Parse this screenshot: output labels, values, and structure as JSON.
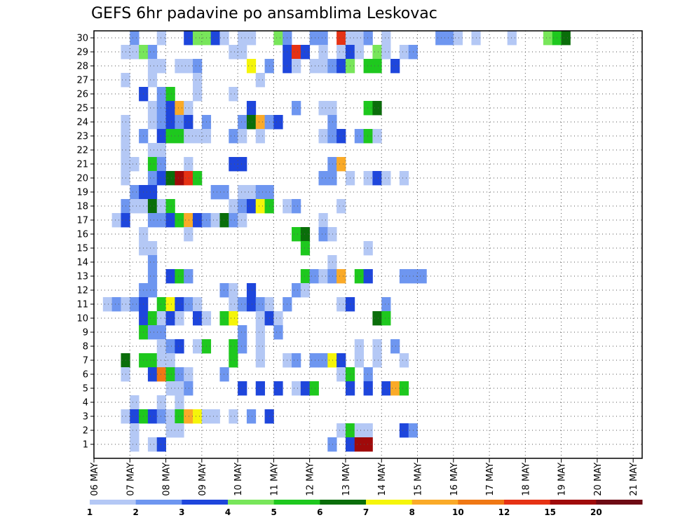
{
  "chart_data": {
    "type": "heatmap",
    "title": "GEFS 6hr padavine po ansamblima Leskovac",
    "xlabel": "",
    "ylabel": "",
    "x_tick_labels": [
      "06 MAY",
      "07 MAY",
      "08 MAY",
      "09 MAY",
      "10 MAY",
      "11 MAY",
      "12 MAY",
      "13 MAY",
      "14 MAY",
      "15 MAY",
      "16 MAY",
      "17 MAY",
      "18 MAY",
      "19 MAY",
      "20 MAY",
      "21 MAY"
    ],
    "y_tick_labels": [
      "1",
      "2",
      "3",
      "4",
      "5",
      "6",
      "7",
      "8",
      "9",
      "10",
      "11",
      "12",
      "13",
      "14",
      "15",
      "16",
      "17",
      "18",
      "19",
      "20",
      "21",
      "22",
      "23",
      "24",
      "25",
      "26",
      "27",
      "28",
      "29",
      "30"
    ],
    "time_steps": 61,
    "members": 30,
    "grid": true,
    "colorbar": {
      "levels": [
        "1",
        "2",
        "3",
        "4",
        "5",
        "6",
        "7",
        "8",
        "10",
        "12",
        "15",
        "20"
      ],
      "colors": [
        "#b4c8f5",
        "#6e96f0",
        "#1e46dc",
        "#78e65a",
        "#1ec81e",
        "#0a6e0a",
        "#f5f50a",
        "#faaa28",
        "#f07814",
        "#e63214",
        "#a00a0a",
        "#6e0a14"
      ]
    },
    "cells": [
      [
        30,
        4,
        2
      ],
      [
        30,
        7,
        1
      ],
      [
        30,
        10,
        3
      ],
      [
        30,
        11,
        4
      ],
      [
        30,
        12,
        4
      ],
      [
        30,
        13,
        3
      ],
      [
        30,
        14,
        1
      ],
      [
        30,
        16,
        1
      ],
      [
        30,
        17,
        1
      ],
      [
        30,
        20,
        4
      ],
      [
        30,
        21,
        2
      ],
      [
        30,
        24,
        2
      ],
      [
        30,
        25,
        2
      ],
      [
        30,
        27,
        10
      ],
      [
        30,
        28,
        1
      ],
      [
        30,
        29,
        1
      ],
      [
        30,
        30,
        2
      ],
      [
        30,
        32,
        1
      ],
      [
        30,
        38,
        2
      ],
      [
        30,
        39,
        2
      ],
      [
        30,
        40,
        1
      ],
      [
        30,
        42,
        1
      ],
      [
        30,
        46,
        1
      ],
      [
        30,
        50,
        4
      ],
      [
        30,
        51,
        5
      ],
      [
        30,
        52,
        6
      ],
      [
        29,
        3,
        1
      ],
      [
        29,
        4,
        1
      ],
      [
        29,
        5,
        4
      ],
      [
        29,
        6,
        2
      ],
      [
        29,
        15,
        1
      ],
      [
        29,
        16,
        1
      ],
      [
        29,
        21,
        3
      ],
      [
        29,
        22,
        10
      ],
      [
        29,
        23,
        3
      ],
      [
        29,
        25,
        1
      ],
      [
        29,
        27,
        1
      ],
      [
        29,
        28,
        3
      ],
      [
        29,
        29,
        1
      ],
      [
        29,
        31,
        4
      ],
      [
        29,
        32,
        1
      ],
      [
        29,
        34,
        1
      ],
      [
        29,
        35,
        2
      ],
      [
        28,
        6,
        1
      ],
      [
        28,
        7,
        1
      ],
      [
        28,
        9,
        1
      ],
      [
        28,
        10,
        1
      ],
      [
        28,
        11,
        2
      ],
      [
        28,
        17,
        7
      ],
      [
        28,
        19,
        2
      ],
      [
        28,
        21,
        3
      ],
      [
        28,
        22,
        1
      ],
      [
        28,
        24,
        1
      ],
      [
        28,
        25,
        1
      ],
      [
        28,
        26,
        2
      ],
      [
        28,
        27,
        3
      ],
      [
        28,
        28,
        4
      ],
      [
        28,
        30,
        5
      ],
      [
        28,
        31,
        5
      ],
      [
        28,
        33,
        3
      ],
      [
        27,
        3,
        1
      ],
      [
        27,
        6,
        1
      ],
      [
        27,
        11,
        1
      ],
      [
        27,
        18,
        1
      ],
      [
        26,
        5,
        3
      ],
      [
        26,
        7,
        2
      ],
      [
        26,
        8,
        5
      ],
      [
        26,
        11,
        1
      ],
      [
        26,
        15,
        1
      ],
      [
        25,
        6,
        1
      ],
      [
        25,
        7,
        2
      ],
      [
        25,
        8,
        3
      ],
      [
        25,
        9,
        8
      ],
      [
        25,
        10,
        1
      ],
      [
        25,
        17,
        3
      ],
      [
        25,
        22,
        2
      ],
      [
        25,
        25,
        1
      ],
      [
        25,
        26,
        1
      ],
      [
        25,
        30,
        5
      ],
      [
        25,
        31,
        6
      ],
      [
        24,
        3,
        1
      ],
      [
        24,
        6,
        1
      ],
      [
        24,
        7,
        2
      ],
      [
        24,
        8,
        3
      ],
      [
        24,
        9,
        2
      ],
      [
        24,
        10,
        3
      ],
      [
        24,
        12,
        2
      ],
      [
        24,
        16,
        2
      ],
      [
        24,
        17,
        6
      ],
      [
        24,
        18,
        8
      ],
      [
        24,
        19,
        2
      ],
      [
        24,
        20,
        3
      ],
      [
        24,
        26,
        2
      ],
      [
        23,
        3,
        1
      ],
      [
        23,
        5,
        2
      ],
      [
        23,
        7,
        3
      ],
      [
        23,
        8,
        5
      ],
      [
        23,
        9,
        5
      ],
      [
        23,
        10,
        1
      ],
      [
        23,
        11,
        1
      ],
      [
        23,
        12,
        1
      ],
      [
        23,
        15,
        2
      ],
      [
        23,
        16,
        1
      ],
      [
        23,
        18,
        1
      ],
      [
        23,
        25,
        1
      ],
      [
        23,
        26,
        2
      ],
      [
        23,
        27,
        3
      ],
      [
        23,
        29,
        2
      ],
      [
        23,
        30,
        5
      ],
      [
        23,
        31,
        1
      ],
      [
        22,
        3,
        1
      ],
      [
        22,
        6,
        1
      ],
      [
        22,
        7,
        1
      ],
      [
        21,
        3,
        1
      ],
      [
        21,
        4,
        1
      ],
      [
        21,
        6,
        5
      ],
      [
        21,
        7,
        2
      ],
      [
        21,
        10,
        1
      ],
      [
        21,
        15,
        3
      ],
      [
        21,
        16,
        3
      ],
      [
        21,
        26,
        2
      ],
      [
        21,
        27,
        8
      ],
      [
        20,
        3,
        1
      ],
      [
        20,
        6,
        2
      ],
      [
        20,
        7,
        3
      ],
      [
        20,
        8,
        6
      ],
      [
        20,
        9,
        11
      ],
      [
        20,
        10,
        10
      ],
      [
        20,
        11,
        5
      ],
      [
        20,
        25,
        2
      ],
      [
        20,
        26,
        2
      ],
      [
        20,
        28,
        1
      ],
      [
        20,
        30,
        1
      ],
      [
        20,
        31,
        3
      ],
      [
        20,
        32,
        1
      ],
      [
        20,
        34,
        1
      ],
      [
        19,
        4,
        2
      ],
      [
        19,
        5,
        3
      ],
      [
        19,
        6,
        3
      ],
      [
        19,
        13,
        2
      ],
      [
        19,
        14,
        2
      ],
      [
        19,
        16,
        1
      ],
      [
        19,
        17,
        1
      ],
      [
        19,
        18,
        2
      ],
      [
        19,
        19,
        2
      ],
      [
        18,
        3,
        2
      ],
      [
        18,
        4,
        1
      ],
      [
        18,
        5,
        1
      ],
      [
        18,
        6,
        6
      ],
      [
        18,
        7,
        1
      ],
      [
        18,
        8,
        5
      ],
      [
        18,
        15,
        1
      ],
      [
        18,
        16,
        2
      ],
      [
        18,
        17,
        3
      ],
      [
        18,
        18,
        7
      ],
      [
        18,
        19,
        5
      ],
      [
        18,
        21,
        1
      ],
      [
        18,
        22,
        2
      ],
      [
        18,
        27,
        1
      ],
      [
        17,
        2,
        1
      ],
      [
        17,
        3,
        3
      ],
      [
        17,
        6,
        2
      ],
      [
        17,
        7,
        2
      ],
      [
        17,
        8,
        3
      ],
      [
        17,
        9,
        5
      ],
      [
        17,
        10,
        8
      ],
      [
        17,
        11,
        3
      ],
      [
        17,
        12,
        2
      ],
      [
        17,
        13,
        1
      ],
      [
        17,
        14,
        6
      ],
      [
        17,
        15,
        2
      ],
      [
        17,
        16,
        1
      ],
      [
        17,
        25,
        1
      ],
      [
        16,
        5,
        1
      ],
      [
        16,
        10,
        1
      ],
      [
        16,
        22,
        5
      ],
      [
        16,
        23,
        6
      ],
      [
        16,
        25,
        2
      ],
      [
        16,
        26,
        1
      ],
      [
        15,
        5,
        1
      ],
      [
        15,
        6,
        1
      ],
      [
        15,
        23,
        5
      ],
      [
        15,
        30,
        1
      ],
      [
        14,
        6,
        2
      ],
      [
        14,
        26,
        1
      ],
      [
        13,
        6,
        2
      ],
      [
        13,
        8,
        3
      ],
      [
        13,
        9,
        5
      ],
      [
        13,
        10,
        2
      ],
      [
        13,
        23,
        5
      ],
      [
        13,
        24,
        2
      ],
      [
        13,
        25,
        1
      ],
      [
        13,
        26,
        2
      ],
      [
        13,
        27,
        8
      ],
      [
        13,
        29,
        5
      ],
      [
        13,
        30,
        3
      ],
      [
        13,
        34,
        2
      ],
      [
        13,
        35,
        2
      ],
      [
        13,
        36,
        2
      ],
      [
        12,
        5,
        2
      ],
      [
        12,
        6,
        2
      ],
      [
        12,
        14,
        2
      ],
      [
        12,
        15,
        1
      ],
      [
        12,
        17,
        3
      ],
      [
        12,
        22,
        2
      ],
      [
        12,
        23,
        1
      ],
      [
        11,
        1,
        1
      ],
      [
        11,
        2,
        2
      ],
      [
        11,
        3,
        1
      ],
      [
        11,
        4,
        2
      ],
      [
        11,
        5,
        3
      ],
      [
        11,
        7,
        5
      ],
      [
        11,
        8,
        7
      ],
      [
        11,
        9,
        3
      ],
      [
        11,
        10,
        2
      ],
      [
        11,
        11,
        1
      ],
      [
        11,
        15,
        1
      ],
      [
        11,
        16,
        2
      ],
      [
        11,
        17,
        3
      ],
      [
        11,
        18,
        2
      ],
      [
        11,
        19,
        1
      ],
      [
        11,
        21,
        2
      ],
      [
        11,
        27,
        1
      ],
      [
        11,
        28,
        3
      ],
      [
        11,
        32,
        2
      ],
      [
        10,
        5,
        3
      ],
      [
        10,
        6,
        5
      ],
      [
        10,
        7,
        1
      ],
      [
        10,
        8,
        3
      ],
      [
        10,
        9,
        1
      ],
      [
        10,
        11,
        3
      ],
      [
        10,
        12,
        1
      ],
      [
        10,
        14,
        5
      ],
      [
        10,
        15,
        7
      ],
      [
        10,
        18,
        1
      ],
      [
        10,
        19,
        3
      ],
      [
        10,
        20,
        1
      ],
      [
        10,
        31,
        6
      ],
      [
        10,
        32,
        5
      ],
      [
        9,
        5,
        5
      ],
      [
        9,
        6,
        2
      ],
      [
        9,
        7,
        2
      ],
      [
        9,
        16,
        2
      ],
      [
        9,
        18,
        1
      ],
      [
        9,
        20,
        2
      ],
      [
        8,
        7,
        1
      ],
      [
        8,
        8,
        2
      ],
      [
        8,
        9,
        3
      ],
      [
        8,
        11,
        1
      ],
      [
        8,
        12,
        5
      ],
      [
        8,
        15,
        5
      ],
      [
        8,
        16,
        2
      ],
      [
        8,
        18,
        1
      ],
      [
        8,
        29,
        1
      ],
      [
        8,
        31,
        1
      ],
      [
        8,
        33,
        2
      ],
      [
        7,
        3,
        6
      ],
      [
        7,
        5,
        5
      ],
      [
        7,
        6,
        5
      ],
      [
        7,
        7,
        1
      ],
      [
        7,
        8,
        1
      ],
      [
        7,
        15,
        5
      ],
      [
        7,
        18,
        1
      ],
      [
        7,
        21,
        1
      ],
      [
        7,
        22,
        2
      ],
      [
        7,
        24,
        2
      ],
      [
        7,
        25,
        2
      ],
      [
        7,
        26,
        7
      ],
      [
        7,
        27,
        3
      ],
      [
        7,
        29,
        1
      ],
      [
        7,
        31,
        1
      ],
      [
        7,
        34,
        1
      ],
      [
        6,
        3,
        1
      ],
      [
        6,
        6,
        3
      ],
      [
        6,
        7,
        9
      ],
      [
        6,
        8,
        5
      ],
      [
        6,
        9,
        2
      ],
      [
        6,
        10,
        1
      ],
      [
        6,
        14,
        2
      ],
      [
        6,
        27,
        1
      ],
      [
        6,
        28,
        5
      ],
      [
        6,
        30,
        2
      ],
      [
        5,
        8,
        1
      ],
      [
        5,
        9,
        1
      ],
      [
        5,
        10,
        2
      ],
      [
        5,
        16,
        3
      ],
      [
        5,
        18,
        3
      ],
      [
        5,
        20,
        3
      ],
      [
        5,
        22,
        1
      ],
      [
        5,
        23,
        3
      ],
      [
        5,
        24,
        5
      ],
      [
        5,
        28,
        3
      ],
      [
        5,
        30,
        3
      ],
      [
        5,
        32,
        3
      ],
      [
        5,
        33,
        8
      ],
      [
        5,
        34,
        5
      ],
      [
        4,
        4,
        1
      ],
      [
        4,
        7,
        1
      ],
      [
        4,
        9,
        1
      ],
      [
        3,
        3,
        1
      ],
      [
        3,
        4,
        3
      ],
      [
        3,
        5,
        5
      ],
      [
        3,
        6,
        3
      ],
      [
        3,
        7,
        2
      ],
      [
        3,
        8,
        1
      ],
      [
        3,
        9,
        5
      ],
      [
        3,
        10,
        8
      ],
      [
        3,
        11,
        7
      ],
      [
        3,
        12,
        1
      ],
      [
        3,
        13,
        1
      ],
      [
        3,
        15,
        1
      ],
      [
        3,
        17,
        2
      ],
      [
        3,
        19,
        3
      ],
      [
        2,
        4,
        1
      ],
      [
        2,
        8,
        1
      ],
      [
        2,
        9,
        1
      ],
      [
        2,
        27,
        1
      ],
      [
        2,
        28,
        5
      ],
      [
        2,
        29,
        1
      ],
      [
        2,
        30,
        1
      ],
      [
        2,
        34,
        3
      ],
      [
        2,
        35,
        2
      ],
      [
        1,
        4,
        1
      ],
      [
        1,
        6,
        1
      ],
      [
        1,
        7,
        3
      ],
      [
        1,
        26,
        2
      ],
      [
        1,
        28,
        3
      ],
      [
        1,
        29,
        11
      ],
      [
        1,
        30,
        11
      ]
    ]
  }
}
